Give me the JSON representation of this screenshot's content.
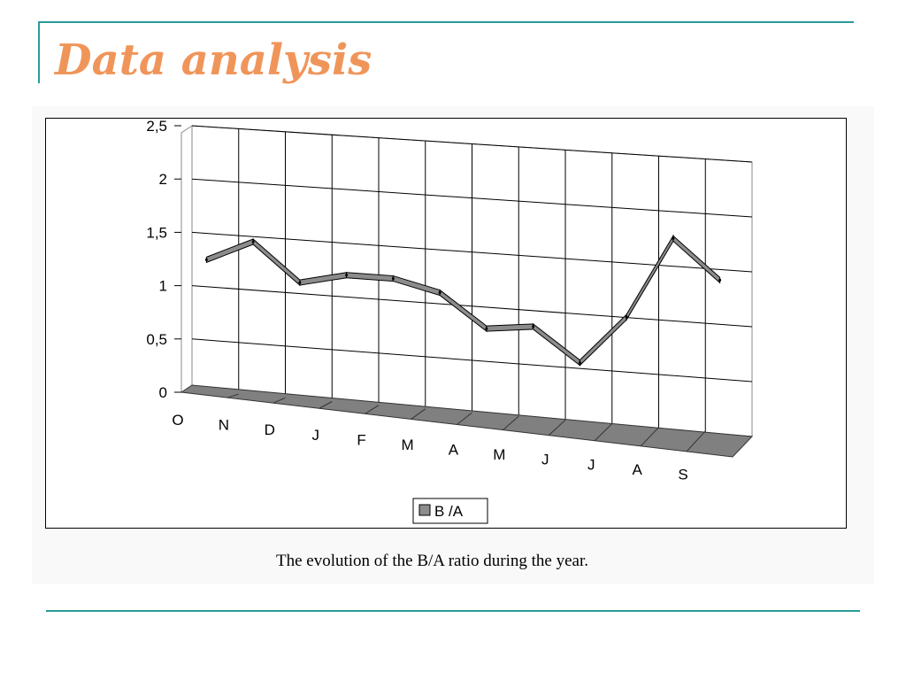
{
  "slide": {
    "title": "Data analysis",
    "caption": "The evolution of the B/A ratio during the year."
  },
  "colors": {
    "accent_rule": "#2b9a9a",
    "title": "#f0955a",
    "series_fill": "#8c8c8c",
    "floor_fill": "#808080",
    "grid": "#000000"
  },
  "chart_data": {
    "type": "line",
    "style": "3d-ribbon",
    "categories": [
      "O",
      "N",
      "D",
      "J",
      "F",
      "M",
      "A",
      "M",
      "J",
      "J",
      "A",
      "S"
    ],
    "series": [
      {
        "name": "B /A",
        "values": [
          1.3,
          1.5,
          1.15,
          1.25,
          1.25,
          1.15,
          0.85,
          0.9,
          0.6,
          1.05,
          1.8,
          1.45
        ]
      }
    ],
    "y_ticks": [
      "0",
      "0,5",
      "1",
      "1,5",
      "2",
      "2,5"
    ],
    "ylim": [
      0,
      2.5
    ],
    "grid": true,
    "legend": "bottom"
  }
}
